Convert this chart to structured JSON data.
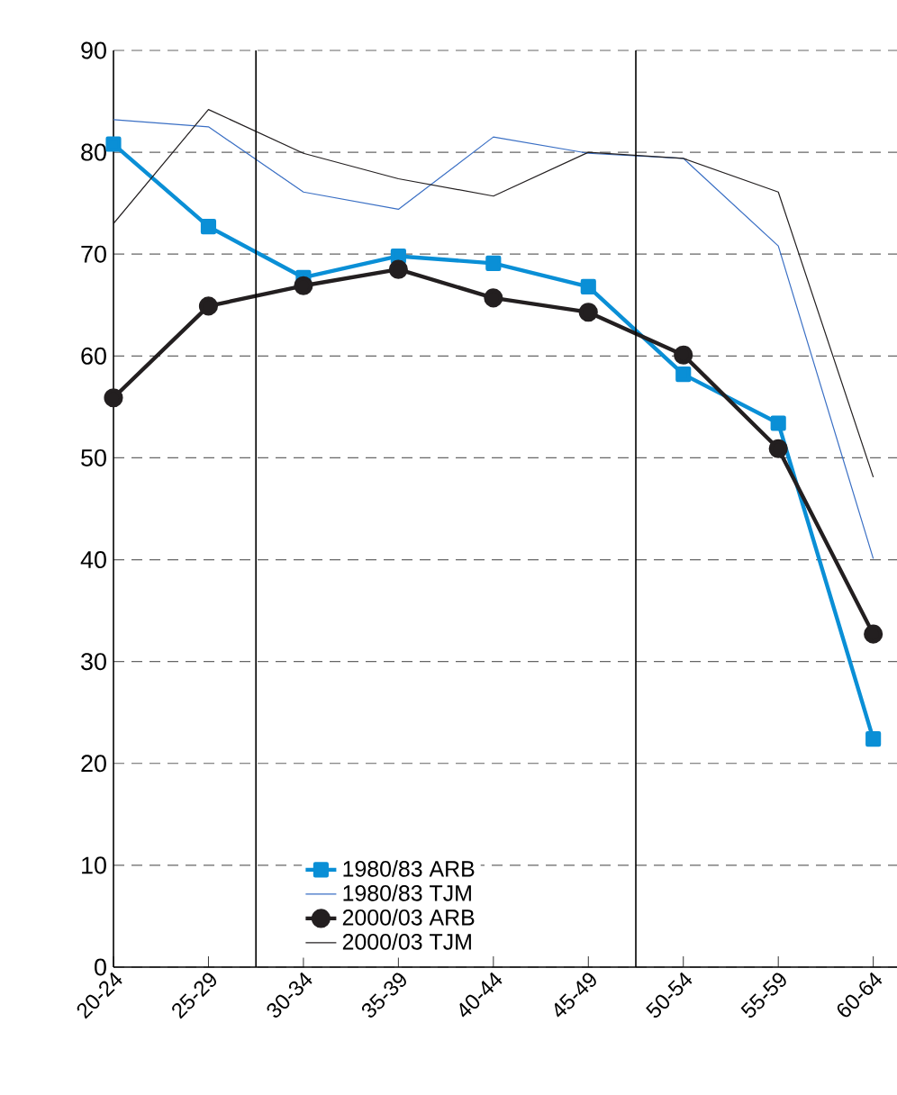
{
  "chart_data": {
    "type": "line",
    "categories": [
      "20-24",
      "25-29",
      "30-34",
      "35-39",
      "40-44",
      "45-49",
      "50-54",
      "55-59",
      "60-64"
    ],
    "series": [
      {
        "name": "1980/83 ARB",
        "color": "#0a8fd6",
        "marker": "square",
        "values": [
          80.8,
          72.7,
          67.7,
          69.8,
          69.1,
          66.8,
          58.2,
          53.4,
          22.4
        ]
      },
      {
        "name": "1980/83 TJM",
        "color": "#3a6fc4",
        "marker": "none",
        "values": [
          83.2,
          82.5,
          76.1,
          74.4,
          81.5,
          79.9,
          79.4,
          70.8,
          40.1
        ]
      },
      {
        "name": "2000/03 ARB",
        "color": "#231f20",
        "marker": "circle",
        "values": [
          55.9,
          64.9,
          66.9,
          68.5,
          65.7,
          64.3,
          60.1,
          50.9,
          32.7
        ]
      },
      {
        "name": "2000/03 TJM",
        "color": "#231f20",
        "marker": "none",
        "values": [
          73.0,
          84.2,
          79.9,
          77.4,
          75.7,
          80.0,
          79.4,
          76.1,
          48.1
        ]
      }
    ],
    "ylim": [
      0,
      90
    ],
    "yticks": [
      0,
      10,
      20,
      30,
      40,
      50,
      60,
      70,
      80,
      90
    ],
    "grid": "y",
    "legend": "bottom",
    "line_style": "solid"
  }
}
